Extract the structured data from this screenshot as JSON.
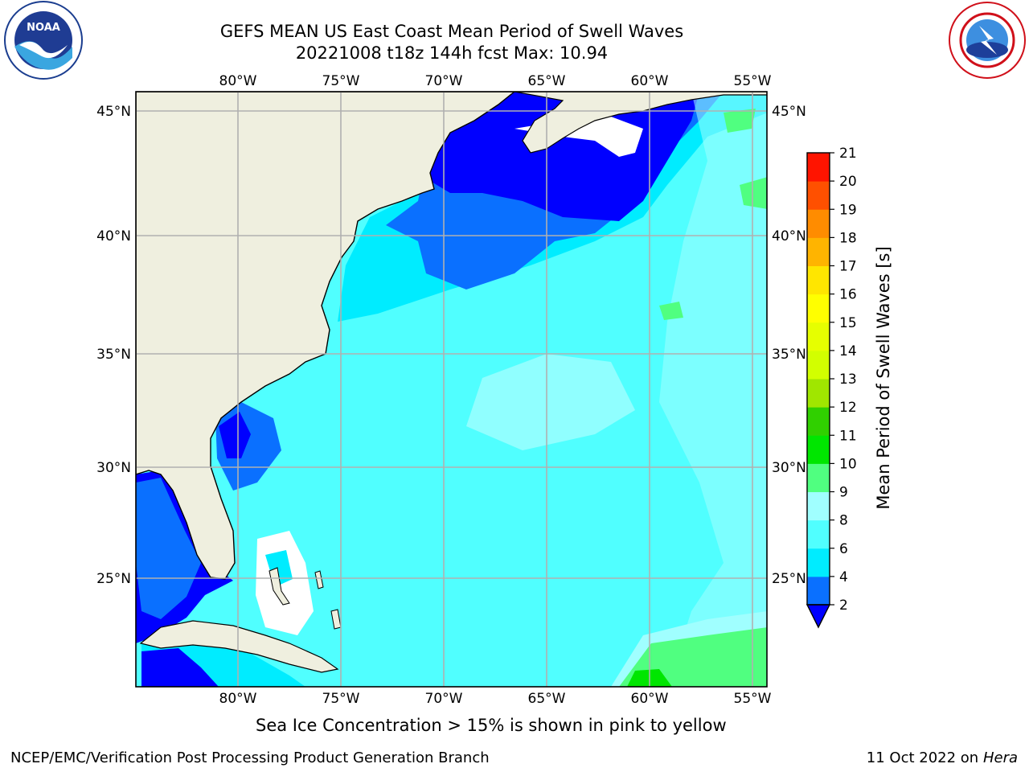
{
  "title_line1": "GEFS MEAN US East Coast Mean Period of Swell Waves",
  "title_line2": "20221008 t18z 144h fcst   Max: 10.94",
  "subnote": "Sea Ice Concentration > 15% is shown in pink to yellow",
  "footer_left": "NCEP/EMC/Verification Post Processing Product Generation Branch",
  "footer_date": "11 Oct 2022 on",
  "footer_machine": "Hera",
  "logos": {
    "left": "noaa-logo",
    "right": "nws-logo"
  },
  "map": {
    "lon_ticks": [
      "80°W",
      "75°W",
      "70°W",
      "65°W",
      "60°W",
      "55°W"
    ],
    "lat_ticks": [
      "45°N",
      "40°N",
      "35°N",
      "30°N",
      "25°N"
    ],
    "land_color": "#efefdf",
    "grid_color": "#b0b0b0"
  },
  "colorbar": {
    "label": "Mean Period of Swell Waves [s]",
    "ticks": [
      "2",
      "4",
      "6",
      "8",
      "9",
      "10",
      "11",
      "12",
      "13",
      "14",
      "15",
      "16",
      "17",
      "18",
      "19",
      "20",
      "21"
    ],
    "under_color": "#0000ff",
    "colors": [
      "#0a70ff",
      "#00ecff",
      "#50ffff",
      "#a0ffff",
      "#50ff80",
      "#00e600",
      "#30d000",
      "#a0e600",
      "#d2ff00",
      "#e6ff00",
      "#ffff00",
      "#ffe600",
      "#ffb400",
      "#ff8c00",
      "#ff5000",
      "#ff1400"
    ]
  }
}
